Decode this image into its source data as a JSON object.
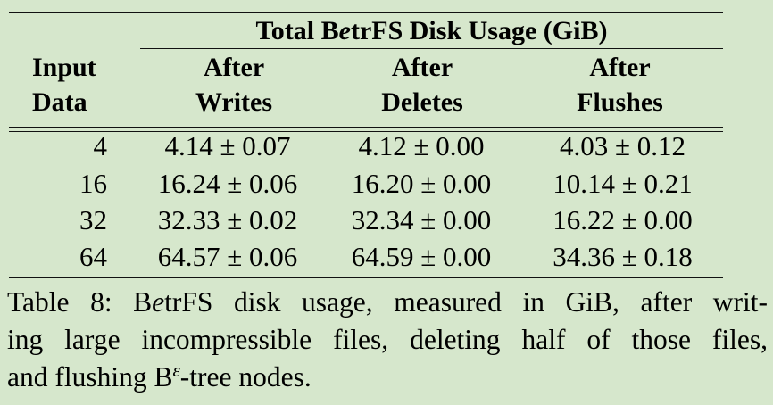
{
  "table": {
    "group_title": {
      "pre": "Total B",
      "ital": "e",
      "post": "trFS Disk Usage (GiB)"
    },
    "columns": [
      {
        "line1": "Input",
        "line2": "Data"
      },
      {
        "line1": "After",
        "line2": "Writes"
      },
      {
        "line1": "After",
        "line2": "Deletes"
      },
      {
        "line1": "After",
        "line2": "Flushes"
      }
    ],
    "rows": [
      {
        "input": "4",
        "writes": "4.14 ± 0.07",
        "deletes": "4.12 ± 0.00",
        "flushes": "4.03 ± 0.12"
      },
      {
        "input": "16",
        "writes": "16.24 ± 0.06",
        "deletes": "16.20 ± 0.00",
        "flushes": "10.14 ± 0.21"
      },
      {
        "input": "32",
        "writes": "32.33 ± 0.02",
        "deletes": "32.34 ± 0.00",
        "flushes": "16.22 ± 0.00"
      },
      {
        "input": "64",
        "writes": "64.57 ± 0.06",
        "deletes": "64.59 ± 0.00",
        "flushes": "34.36 ± 0.18"
      }
    ]
  },
  "caption": {
    "line1_a": "Table 8: B",
    "line1_ital": "e",
    "line1_b": "trFS disk usage, measured in GiB, after writ-",
    "line2": "ing large incompressible files, deleting half of those files,",
    "line3_a": "and flushing B",
    "line3_sup": "ε",
    "line3_b": "-tree nodes."
  }
}
